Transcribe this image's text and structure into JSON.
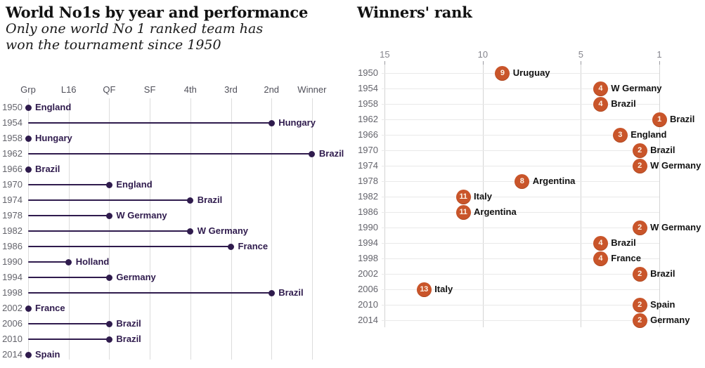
{
  "chart_data": [
    {
      "type": "scatter",
      "variant": "lollipop",
      "title": "World No1s by year and performance",
      "subtitle": "Only one world No 1 ranked team has won the tournament since 1950",
      "x_axis": {
        "labels": [
          "Grp",
          "L16",
          "QF",
          "SF",
          "4th",
          "3rd",
          "2nd",
          "Winner"
        ],
        "position": "top"
      },
      "categories": [
        "1950",
        "1954",
        "1958",
        "1962",
        "1966",
        "1970",
        "1974",
        "1978",
        "1982",
        "1986",
        "1990",
        "1994",
        "1998",
        "2002",
        "2006",
        "2010",
        "2014"
      ],
      "points": [
        {
          "year": "1950",
          "team": "England",
          "stage": "Grp"
        },
        {
          "year": "1954",
          "team": "Hungary",
          "stage": "2nd"
        },
        {
          "year": "1958",
          "team": "Hungary",
          "stage": "Grp"
        },
        {
          "year": "1962",
          "team": "Brazil",
          "stage": "Winner"
        },
        {
          "year": "1966",
          "team": "Brazil",
          "stage": "Grp"
        },
        {
          "year": "1970",
          "team": "England",
          "stage": "QF"
        },
        {
          "year": "1974",
          "team": "Brazil",
          "stage": "4th"
        },
        {
          "year": "1978",
          "team": "W Germany",
          "stage": "QF"
        },
        {
          "year": "1982",
          "team": "W Germany",
          "stage": "4th"
        },
        {
          "year": "1986",
          "team": "France",
          "stage": "3rd"
        },
        {
          "year": "1990",
          "team": "Holland",
          "stage": "L16"
        },
        {
          "year": "1994",
          "team": "Germany",
          "stage": "QF"
        },
        {
          "year": "1998",
          "team": "Brazil",
          "stage": "2nd"
        },
        {
          "year": "2002",
          "team": "France",
          "stage": "Grp"
        },
        {
          "year": "2006",
          "team": "Brazil",
          "stage": "QF"
        },
        {
          "year": "2010",
          "team": "Brazil",
          "stage": "QF"
        },
        {
          "year": "2014",
          "team": "Spain",
          "stage": "Grp"
        }
      ],
      "colors": {
        "dot": "#2f1b4d",
        "stem": "#2f1b4d",
        "grid": "#dcdcdc"
      },
      "legend": "none",
      "grid": "vertical-only"
    },
    {
      "type": "scatter",
      "variant": "labeled-dots",
      "title": "Winners' rank",
      "x_axis": {
        "ticks": [
          15,
          10,
          5,
          1
        ],
        "reversed": true,
        "range": [
          15,
          1
        ],
        "position": "top"
      },
      "categories": [
        "1950",
        "1954",
        "1958",
        "1962",
        "1966",
        "1970",
        "1974",
        "1978",
        "1982",
        "1986",
        "1990",
        "1994",
        "1998",
        "2002",
        "2006",
        "2010",
        "2014"
      ],
      "points": [
        {
          "year": "1950",
          "team": "Uruguay",
          "rank": 9
        },
        {
          "year": "1954",
          "team": "W Germany",
          "rank": 4
        },
        {
          "year": "1958",
          "team": "Brazil",
          "rank": 4
        },
        {
          "year": "1962",
          "team": "Brazil",
          "rank": 1
        },
        {
          "year": "1966",
          "team": "England",
          "rank": 3
        },
        {
          "year": "1970",
          "team": "Brazil",
          "rank": 2
        },
        {
          "year": "1974",
          "team": "W Germany",
          "rank": 2
        },
        {
          "year": "1978",
          "team": "Argentina",
          "rank": 8
        },
        {
          "year": "1982",
          "team": "Italy",
          "rank": 11
        },
        {
          "year": "1986",
          "team": "Argentina",
          "rank": 11
        },
        {
          "year": "1990",
          "team": "W Germany",
          "rank": 2
        },
        {
          "year": "1994",
          "team": "Brazil",
          "rank": 4
        },
        {
          "year": "1998",
          "team": "France",
          "rank": 4
        },
        {
          "year": "2002",
          "team": "Brazil",
          "rank": 2
        },
        {
          "year": "2006",
          "team": "Italy",
          "rank": 13
        },
        {
          "year": "2010",
          "team": "Spain",
          "rank": 2
        },
        {
          "year": "2014",
          "team": "Germany",
          "rank": 2
        }
      ],
      "colors": {
        "dot": "#c9552a",
        "number": "#fdf3e7",
        "grid": "#d4d4d4",
        "row_line": "#e9e9e9"
      },
      "legend": "none",
      "grid": "both"
    }
  ]
}
